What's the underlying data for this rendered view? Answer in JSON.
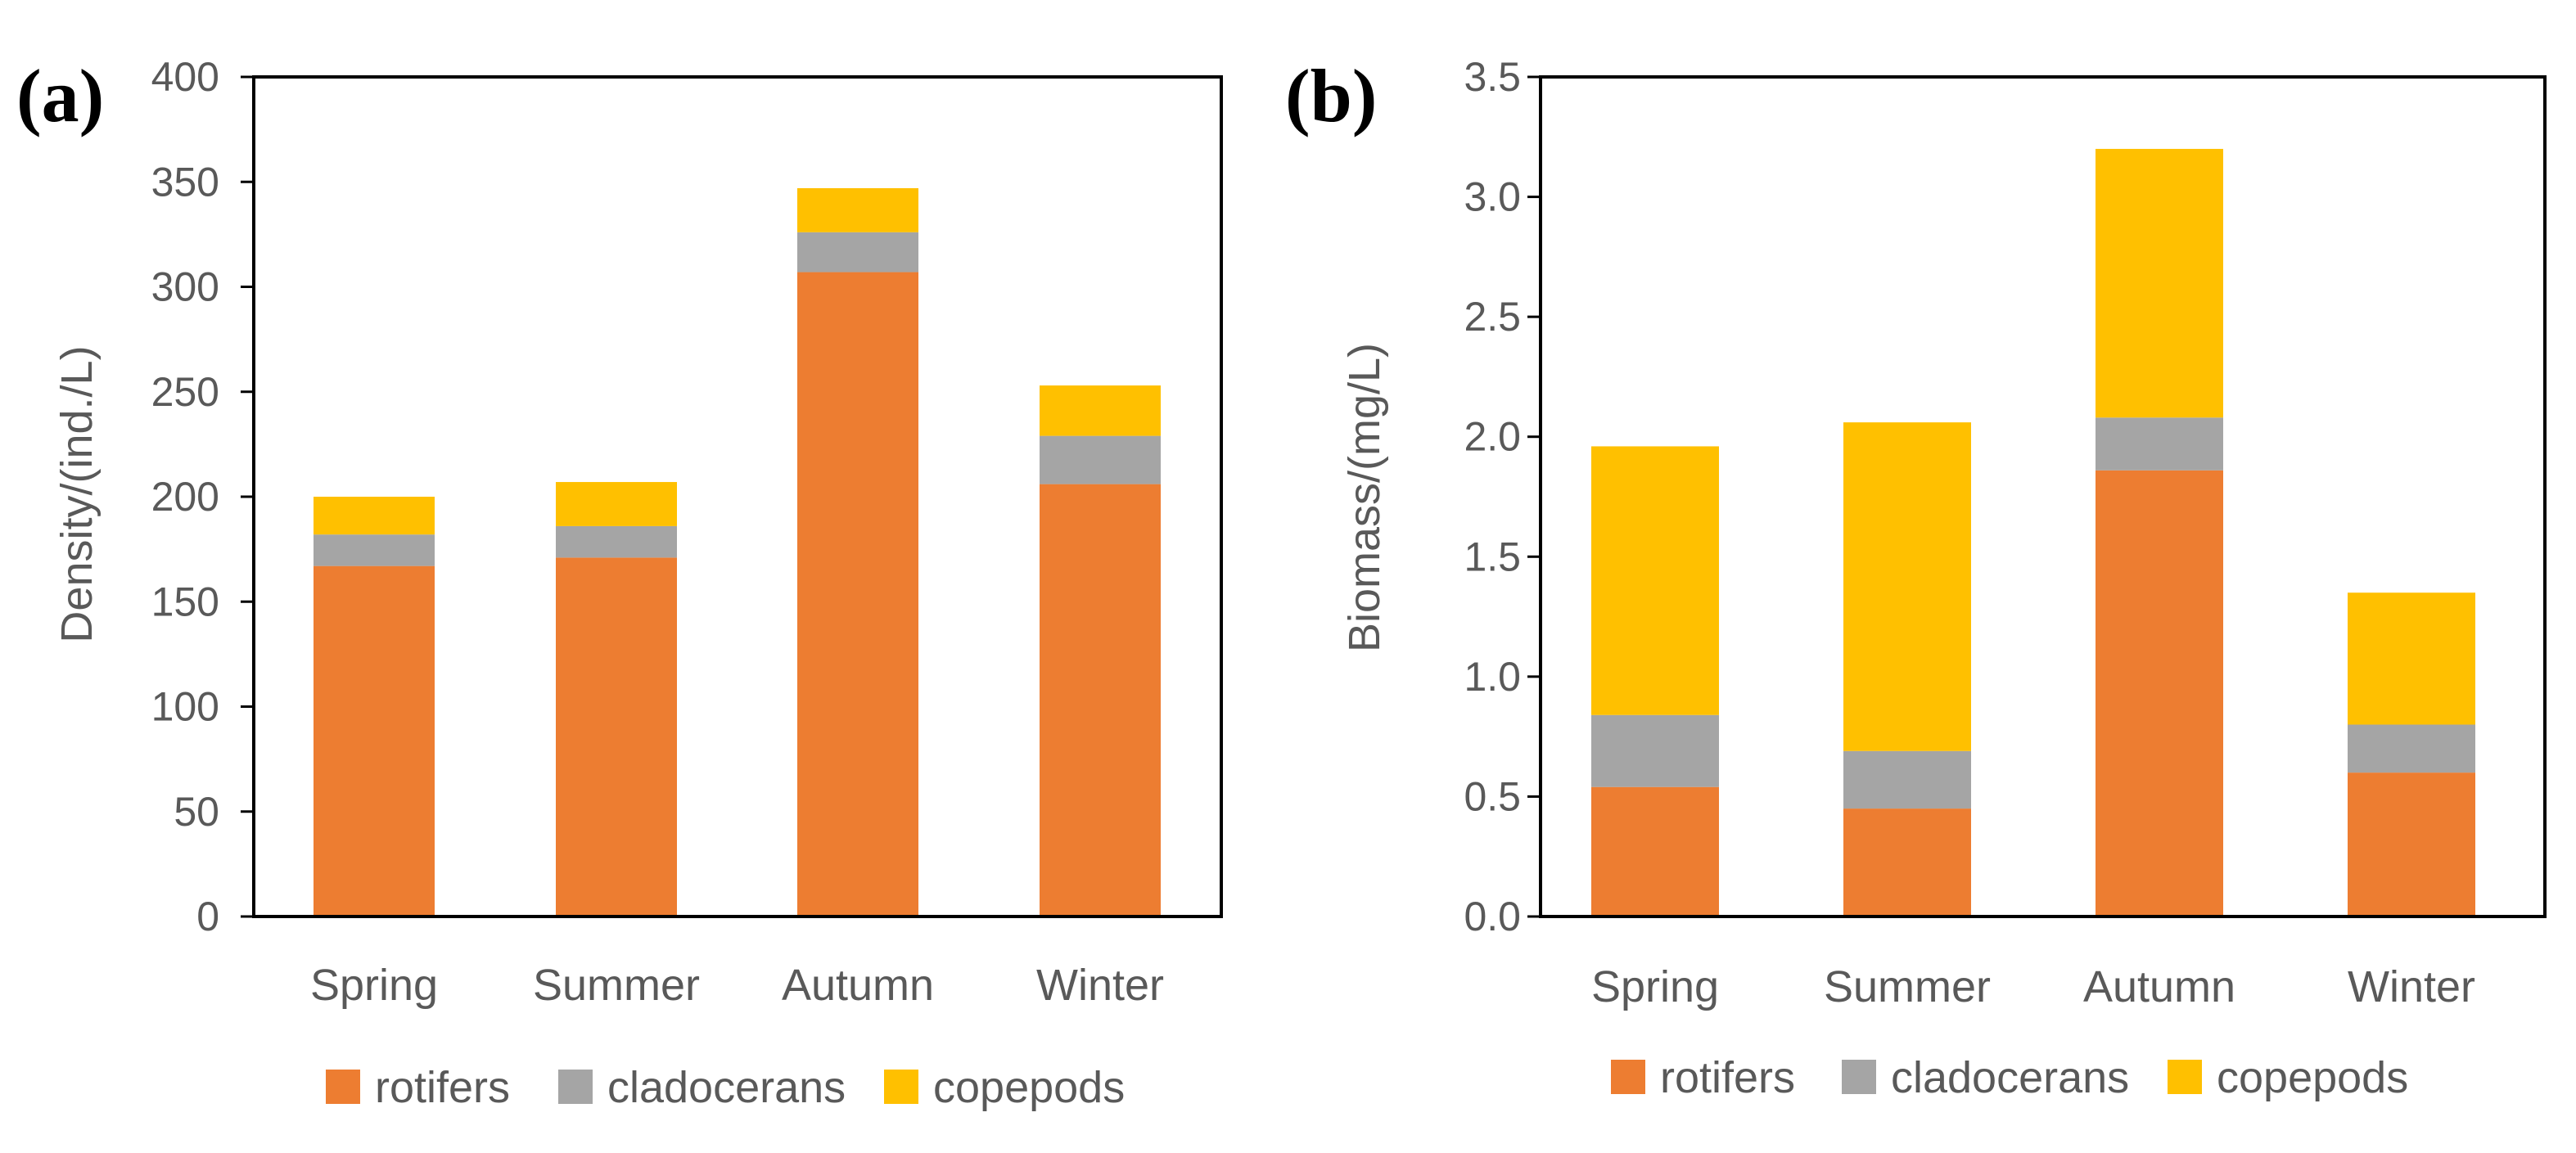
{
  "colors": {
    "rotifers": "#ED7D31",
    "cladocerans": "#A5A5A5",
    "copepods": "#FFC000"
  },
  "chart_data": [
    {
      "type": "bar",
      "stacked": true,
      "panel_label": "(a)",
      "title": "",
      "xlabel": "",
      "ylabel": "Density/(ind./L)",
      "ylim": [
        0,
        400
      ],
      "yticks": [
        "0",
        "50",
        "100",
        "150",
        "200",
        "250",
        "300",
        "350",
        "400"
      ],
      "categories": [
        "Spring",
        "Summer",
        "Autumn",
        "Winter"
      ],
      "series": [
        {
          "name": "rotifers",
          "values": [
            167,
            171,
            307,
            206
          ]
        },
        {
          "name": "cladocerans",
          "values": [
            15,
            15,
            19,
            23
          ]
        },
        {
          "name": "copepods",
          "values": [
            18,
            21,
            21,
            24
          ]
        }
      ],
      "legend_position": "bottom"
    },
    {
      "type": "bar",
      "stacked": true,
      "panel_label": "(b)",
      "title": "",
      "xlabel": "",
      "ylabel": "Biomass/(mg/L)",
      "ylim": [
        0,
        3.5
      ],
      "yticks": [
        "0.0",
        "0.5",
        "1.0",
        "1.5",
        "2.0",
        "2.5",
        "3.0",
        "3.5"
      ],
      "categories": [
        "Spring",
        "Summer",
        "Autumn",
        "Winter"
      ],
      "series": [
        {
          "name": "rotifers",
          "values": [
            0.54,
            0.45,
            1.86,
            0.6
          ]
        },
        {
          "name": "cladocerans",
          "values": [
            0.3,
            0.24,
            0.22,
            0.2
          ]
        },
        {
          "name": "copepods",
          "values": [
            1.12,
            1.37,
            1.12,
            0.55
          ]
        }
      ],
      "legend_position": "bottom"
    }
  ]
}
